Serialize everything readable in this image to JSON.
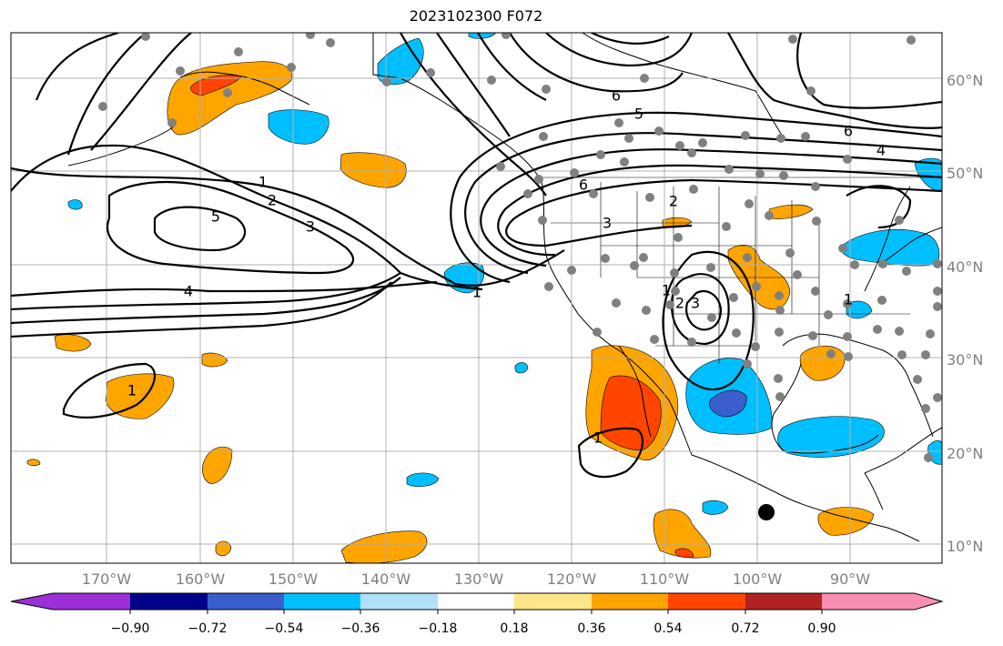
{
  "title": "2023102300 F072",
  "lat_labels": [
    "60°N",
    "50°N",
    "40°N",
    "30°N",
    "20°N",
    "10°N"
  ],
  "lon_labels": [
    "170°W",
    "160°W",
    "150°W",
    "140°W",
    "130°W",
    "120°W",
    "110°W",
    "100°W",
    "90°W"
  ],
  "colorbar": {
    "ticks": [
      "−0.90",
      "−0.72",
      "−0.54",
      "−0.36",
      "−0.18",
      "0.18",
      "0.36",
      "0.54",
      "0.72",
      "0.90"
    ],
    "colors": [
      "#9b30d9",
      "#00008b",
      "#3a5fcd",
      "#00bfff",
      "#b0e0f8",
      "#ffffff",
      "#fde68a",
      "#ffa500",
      "#ff4500",
      "#b22222",
      "#f78fb3"
    ]
  },
  "contour_labels": [
    "1",
    "2",
    "5",
    "3",
    "4",
    "1",
    "1",
    "6",
    "5",
    "6",
    "4",
    "6",
    "2",
    "3",
    "1",
    "2",
    "3",
    "1",
    "1"
  ]
}
